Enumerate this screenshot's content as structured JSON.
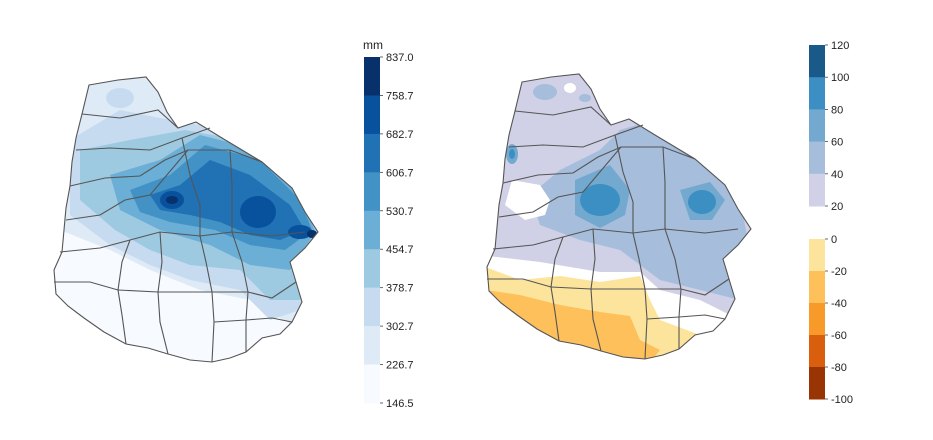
{
  "left_map": {
    "unit": "mm",
    "legend": {
      "ticks": [
        "837.0",
        "758.7",
        "682.7",
        "606.7",
        "530.7",
        "454.7",
        "378.7",
        "302.7",
        "226.7",
        "146.5"
      ],
      "colors": [
        "#08306b",
        "#08519c",
        "#2171b5",
        "#4292c6",
        "#6baed6",
        "#9ecae1",
        "#c6dbef",
        "#deebf7",
        "#f7fbff"
      ]
    }
  },
  "right_map": {
    "legend_positive": {
      "ticks": [
        "120",
        "100",
        "80",
        "60",
        "40",
        "20"
      ],
      "colors": [
        "#1a5a8a",
        "#3b8fc2",
        "#74a9cf",
        "#a6bddb",
        "#d0d1e6"
      ]
    },
    "legend_negative": {
      "ticks": [
        "0",
        "-20",
        "-40",
        "-60",
        "-80",
        "-100"
      ],
      "colors": [
        "#fde49c",
        "#fdc05a",
        "#f79a2a",
        "#d95f0e",
        "#993404"
      ]
    }
  }
}
